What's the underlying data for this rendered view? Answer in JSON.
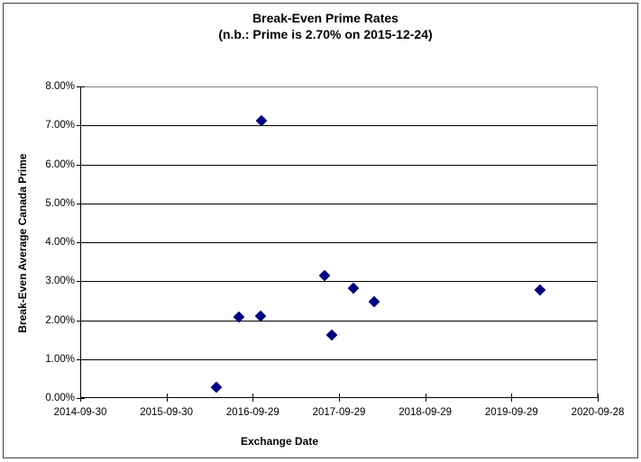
{
  "chart_data": {
    "type": "scatter",
    "title": "Break-Even Prime Rates",
    "subtitle": "(n.b.: Prime is 2.70% on 2015-12-24)",
    "xlabel": "Exchange Date",
    "ylabel": "Break-Even Average Canada Prime",
    "x_ticks": [
      "2014-09-30",
      "2015-09-30",
      "2016-09-29",
      "2017-09-29",
      "2018-09-29",
      "2019-09-29",
      "2020-09-28"
    ],
    "y_ticks": [
      "0.00%",
      "1.00%",
      "2.00%",
      "3.00%",
      "4.00%",
      "5.00%",
      "6.00%",
      "7.00%",
      "8.00%"
    ],
    "ylim": [
      0,
      8
    ],
    "grid": "horizontal",
    "legend": "none",
    "marker": {
      "shape": "diamond",
      "color": "#000080"
    },
    "points": [
      {
        "date": "2016-04-28",
        "value": 0.28
      },
      {
        "date": "2016-07-31",
        "value": 2.08
      },
      {
        "date": "2016-11-02",
        "value": 2.11
      },
      {
        "date": "2016-11-04",
        "value": 7.13
      },
      {
        "date": "2017-07-29",
        "value": 3.14
      },
      {
        "date": "2017-08-28",
        "value": 1.61
      },
      {
        "date": "2017-11-28",
        "value": 2.83
      },
      {
        "date": "2018-02-24",
        "value": 2.47
      },
      {
        "date": "2020-01-28",
        "value": 2.78
      }
    ],
    "colors": {
      "marker": "#000080",
      "gridline": "#000000",
      "plot_border": "#808080",
      "axis": "#000000",
      "text": "#000000",
      "outer_border": "#444444",
      "background": "#ffffff"
    }
  }
}
